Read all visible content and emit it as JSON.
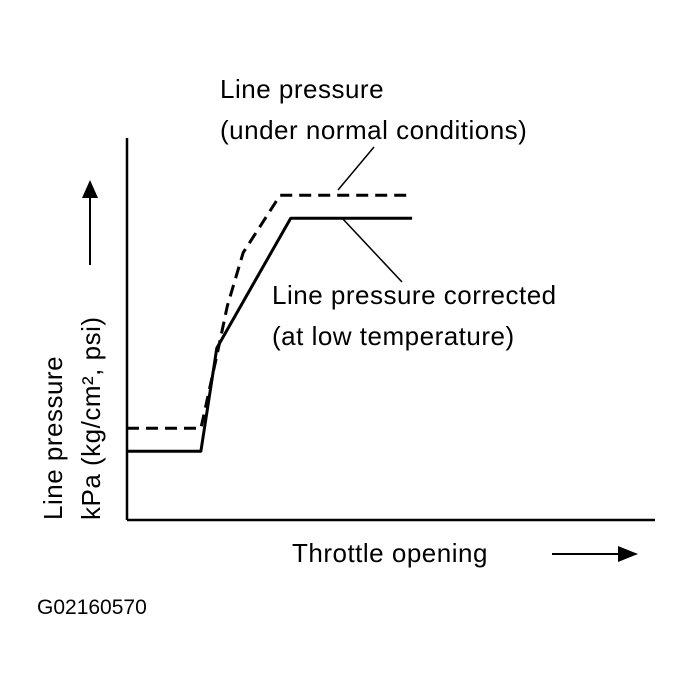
{
  "chart_data": {
    "type": "line",
    "title": "",
    "xlabel": "Throttle opening",
    "ylabel_line1": "Line pressure",
    "ylabel_line2": "kPa (kg/cm², psi)",
    "axis_ticks": "none",
    "grid": false,
    "xlim": [
      0,
      100
    ],
    "ylim": [
      0,
      100
    ],
    "series": [
      {
        "name": "Line pressure (under normal conditions)",
        "style": "dashed",
        "x": [
          0,
          14,
          17,
          19,
          22,
          29,
          54
        ],
        "y": [
          24,
          24,
          43,
          56,
          70,
          85,
          85
        ]
      },
      {
        "name": "Line pressure corrected (at low temperature)",
        "style": "solid",
        "x": [
          0,
          14,
          17,
          31,
          54
        ],
        "y": [
          18,
          18,
          45,
          79,
          79
        ]
      }
    ],
    "annotations": [
      {
        "line1": "Line pressure",
        "line2": "(under normal conditions)",
        "series_index": 0
      },
      {
        "line1": "Line pressure corrected",
        "line2": "(at low temperature)",
        "series_index": 1
      }
    ],
    "line_color": "#000000"
  },
  "figure_code": "G02160570"
}
